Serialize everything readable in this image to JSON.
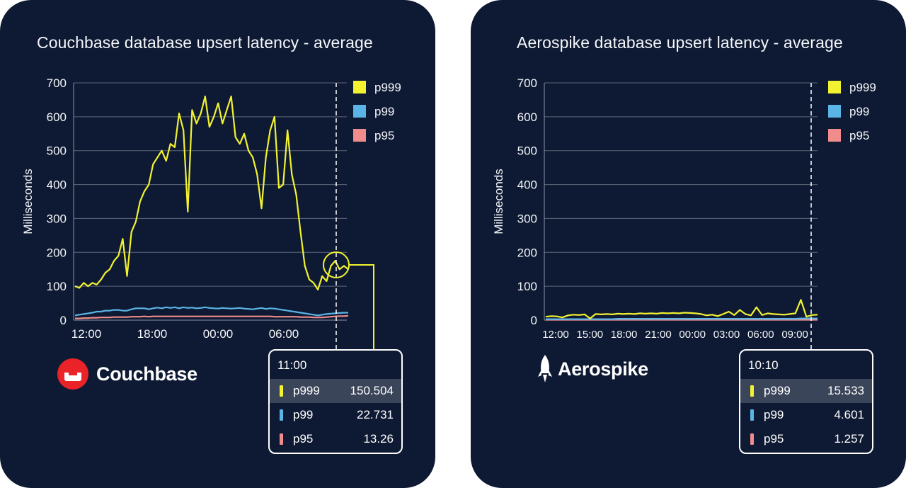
{
  "colors": {
    "background": "#0e1a33",
    "p999": "#f2f230",
    "p99": "#5ab4e6",
    "p95": "#f08c8c",
    "highlight": "#3b4559"
  },
  "chart_data": [
    {
      "type": "line",
      "title": "Couchbase database upsert latency - average",
      "ylabel": "Milliseconds",
      "xlabel": "",
      "ylim": [
        0,
        700
      ],
      "yticks": [
        0,
        100,
        200,
        300,
        400,
        500,
        600,
        700
      ],
      "xtick_labels": [
        "12:00",
        "18:00",
        "00:00",
        "06:00"
      ],
      "legend": "right",
      "grid": true,
      "series": [
        {
          "name": "p999",
          "values": [
            100,
            95,
            110,
            100,
            110,
            105,
            120,
            140,
            150,
            175,
            190,
            240,
            130,
            260,
            290,
            350,
            380,
            400,
            460,
            480,
            500,
            470,
            520,
            510,
            610,
            560,
            320,
            620,
            580,
            610,
            660,
            570,
            600,
            640,
            580,
            620,
            660,
            540,
            520,
            550,
            500,
            480,
            430,
            330,
            480,
            560,
            600,
            390,
            400,
            560,
            430,
            370,
            260,
            160,
            120,
            110,
            90,
            130,
            115,
            160,
            175,
            150,
            160,
            150
          ]
        },
        {
          "name": "p99",
          "values": [
            14,
            16,
            18,
            20,
            22,
            25,
            25,
            28,
            28,
            30,
            30,
            28,
            28,
            32,
            35,
            35,
            35,
            32,
            35,
            37,
            35,
            38,
            36,
            38,
            35,
            38,
            36,
            37,
            35,
            36,
            38,
            36,
            35,
            34,
            36,
            35,
            34,
            35,
            36,
            34,
            33,
            32,
            34,
            36,
            33,
            35,
            34,
            32,
            30,
            28,
            26,
            24,
            22,
            20,
            18,
            16,
            14,
            16,
            18,
            19,
            20,
            21,
            22,
            22
          ]
        },
        {
          "name": "p95",
          "values": [
            5,
            5,
            6,
            6,
            7,
            7,
            8,
            8,
            8,
            9,
            9,
            9,
            9,
            10,
            10,
            10,
            11,
            10,
            11,
            11,
            11,
            11,
            11,
            11,
            11,
            11,
            11,
            11,
            11,
            11,
            11,
            11,
            11,
            11,
            11,
            11,
            11,
            11,
            11,
            11,
            11,
            11,
            11,
            11,
            11,
            11,
            10,
            10,
            10,
            10,
            10,
            10,
            9,
            9,
            9,
            8,
            8,
            8,
            9,
            10,
            11,
            12,
            12,
            13
          ]
        }
      ]
    },
    {
      "type": "line",
      "title": "Aerospike database upsert latency - average",
      "ylabel": "Milliseconds",
      "xlabel": "",
      "ylim": [
        0,
        700
      ],
      "yticks": [
        0,
        100,
        200,
        300,
        400,
        500,
        600,
        700
      ],
      "xtick_labels": [
        "12:00",
        "15:00",
        "18:00",
        "21:00",
        "00:00",
        "03:00",
        "06:00",
        "09:00"
      ],
      "legend": "right",
      "grid": true,
      "series": [
        {
          "name": "p999",
          "values": [
            10,
            12,
            11,
            8,
            14,
            16,
            15,
            17,
            5,
            18,
            17,
            18,
            17,
            19,
            18,
            19,
            18,
            20,
            19,
            20,
            19,
            21,
            20,
            21,
            20,
            22,
            21,
            20,
            18,
            14,
            16,
            12,
            18,
            25,
            15,
            30,
            18,
            14,
            38,
            15,
            20,
            18,
            17,
            16,
            18,
            20,
            60,
            10,
            15,
            16
          ]
        },
        {
          "name": "p99",
          "values": [
            3,
            3,
            3,
            3,
            3,
            3,
            3,
            3,
            3,
            3,
            3,
            3,
            3,
            4,
            4,
            4,
            4,
            4,
            4,
            4,
            4,
            4,
            4,
            4,
            4,
            4,
            4,
            4,
            4,
            4,
            4,
            4,
            4,
            4,
            4,
            4,
            4,
            4,
            4,
            4,
            4,
            4,
            4,
            4,
            4,
            4,
            5,
            5,
            5,
            5
          ]
        },
        {
          "name": "p95",
          "values": [
            1,
            1,
            1,
            1,
            1,
            1,
            1,
            1,
            1,
            1,
            1,
            1,
            1,
            1,
            1,
            1,
            1,
            1,
            1,
            1,
            1,
            1,
            1,
            1,
            1,
            1,
            1,
            1,
            1,
            1,
            1,
            1,
            1,
            1,
            1,
            1,
            1,
            1,
            1,
            1,
            1,
            1,
            1,
            1,
            1,
            1,
            1,
            1,
            1,
            1
          ]
        }
      ]
    }
  ],
  "left": {
    "logo_text": "Couchbase",
    "tooltip": {
      "time": "11:00",
      "rows": [
        {
          "name": "p999",
          "value": "150.504"
        },
        {
          "name": "p99",
          "value": "22.731"
        },
        {
          "name": "p95",
          "value": "13.26"
        }
      ]
    }
  },
  "right": {
    "logo_text": "Aerospike",
    "tooltip": {
      "time": "10:10",
      "rows": [
        {
          "name": "p999",
          "value": "15.533"
        },
        {
          "name": "p99",
          "value": "4.601"
        },
        {
          "name": "p95",
          "value": "1.257"
        }
      ]
    }
  }
}
